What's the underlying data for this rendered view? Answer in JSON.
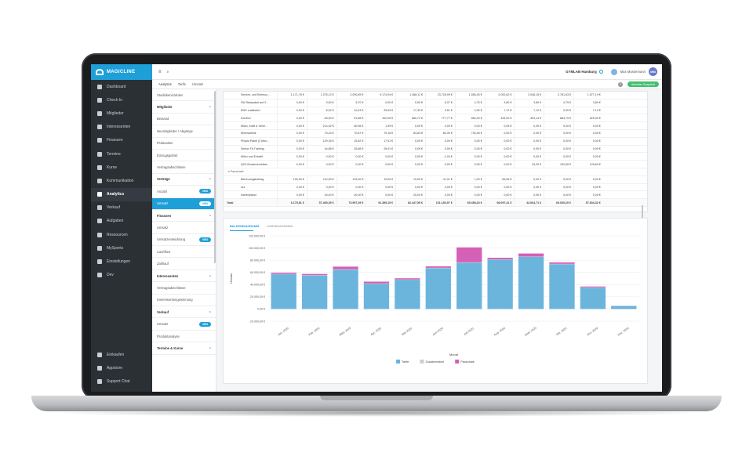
{
  "app": {
    "name": "MAGICLINE"
  },
  "sidebar": {
    "items": [
      {
        "label": "Dashboard",
        "icon": "dashboard-icon"
      },
      {
        "label": "Check-In",
        "icon": "checkin-icon"
      },
      {
        "label": "Mitglieder",
        "icon": "members-icon"
      },
      {
        "label": "Interessenten",
        "icon": "prospects-icon"
      },
      {
        "label": "Finanzen",
        "icon": "finance-icon"
      },
      {
        "label": "Termine",
        "icon": "calendar-icon"
      },
      {
        "label": "Kurse",
        "icon": "courses-icon"
      },
      {
        "label": "Kommunikation",
        "icon": "chat-icon"
      },
      {
        "label": "Analytics",
        "icon": "analytics-icon",
        "active": true
      },
      {
        "label": "Verkauf",
        "icon": "cart-icon"
      },
      {
        "label": "Aufgaben",
        "icon": "tasks-icon"
      },
      {
        "label": "Ressourcen",
        "icon": "resources-icon"
      },
      {
        "label": "MySports",
        "icon": "mysports-icon"
      },
      {
        "label": "Einstellungen",
        "icon": "settings-icon"
      },
      {
        "label": "Dev",
        "icon": "dev-icon"
      }
    ],
    "bottom_items": [
      {
        "label": "Einkaufen",
        "icon": "shop-icon"
      },
      {
        "label": "Appstore",
        "icon": "appstore-icon"
      },
      {
        "label": "Support Chat",
        "icon": "support-icon"
      }
    ]
  },
  "topbar": {
    "studio": "GYMLAB Hamburg",
    "user": "Max Mustermann",
    "initials": "MM"
  },
  "tabs": [
    "Analytics",
    "Tarife",
    "Umsatz"
  ],
  "status_pill": "Aktueller Snapshot",
  "subnav": [
    {
      "label": "Studiokennzahlen",
      "type": "item"
    },
    {
      "label": "Mitglieder",
      "type": "header"
    },
    {
      "label": "Bestand",
      "type": "item"
    },
    {
      "label": "Neumitglieder / Abgänge",
      "type": "item"
    },
    {
      "label": "Fluktuation",
      "type": "item"
    },
    {
      "label": "Einzugsgebiet",
      "type": "item"
    },
    {
      "label": "Vertragsabschlüsse",
      "type": "item"
    },
    {
      "label": "Verträge",
      "type": "header"
    },
    {
      "label": "Anzahl",
      "type": "item",
      "badge": "NEU"
    },
    {
      "label": "Umsatz",
      "type": "item",
      "badge": "NEU",
      "selected": true
    },
    {
      "label": "Finanzen",
      "type": "header"
    },
    {
      "label": "Umsatz",
      "type": "item"
    },
    {
      "label": "Umsatzentwicklung",
      "type": "item",
      "badge": "NEU"
    },
    {
      "label": "Cashflow",
      "type": "item"
    },
    {
      "label": "Zahllauf",
      "type": "item"
    },
    {
      "label": "Interessenten",
      "type": "header"
    },
    {
      "label": "Vertragsabschlüsse",
      "type": "item"
    },
    {
      "label": "Interessentengewinnung",
      "type": "item"
    },
    {
      "label": "Verkauf",
      "type": "header"
    },
    {
      "label": "Umsatz",
      "type": "item",
      "badge": "NEU"
    },
    {
      "label": "Produktanalyse",
      "type": "item"
    },
    {
      "label": "Termine & Kurse",
      "type": "header"
    }
  ],
  "table": {
    "rows": [
      {
        "name": "Service- und Betreuu...",
        "values": [
          "1.171,78 €",
          "1.375,12 €",
          "2.090,89 €",
          "9.174,94 €",
          "1.468,11 €",
          "23.728,99 €",
          "1.556,45 €",
          "2.092,62 €",
          "3.048,15 €",
          "2.781,63 €",
          "1.577,19 €"
        ]
      },
      {
        "name": "SW Startpaket auf 2...",
        "values": [
          "0,00 €",
          "9,50 €",
          "5,70 €",
          "0,00 €",
          "0,50 €",
          "6,37 €",
          "4,75 €",
          "3,80 €",
          "3,80 €",
          "4,75 €",
          "3,80 €"
        ]
      },
      {
        "name": "EMS zusätzlich",
        "values": [
          "0,00 €",
          "8,52 €",
          "10,43 €",
          "25,53 €",
          "17,49 €",
          "0,51 €",
          "0,90 €",
          "7,12 €",
          "7,12 €",
          "0,90 €",
          "7,12 €"
        ]
      },
      {
        "name": "Komfort",
        "values": [
          "0,00 €",
          "-45,00 €",
          "51,86 €",
          "342,05 €",
          "680,72 €",
          "777,77 €",
          "564,93 €",
          "425,00 €",
          "-494,14 €",
          "884,79 €",
          "525,00 €"
        ]
      },
      {
        "name": "Milon, Kraft & Sene...",
        "values": [
          "0,00 €",
          "214,92 €",
          "80,96 €",
          "1,99 €",
          "0,09 €",
          "0,00 €",
          "0,00 €",
          "0,09 €",
          "0,00 €",
          "0,00 €",
          "0,00 €"
        ]
      },
      {
        "name": "Mineraldrink",
        "values": [
          "0,00 €",
          "75,43 €",
          "70,87 €",
          "79,18 €",
          "84,83 €",
          "80,30 €",
          "730,46 €",
          "0,00 €",
          "0,00 €",
          "0,00 €",
          "0,00 €"
        ]
      },
      {
        "name": "Physio Paket (3 Mon...",
        "values": [
          "0,00 €",
          "129,35 €",
          "25,82 €",
          "17,91 €",
          "0,00 €",
          "0,00 €",
          "0,00 €",
          "0,00 €",
          "0,00 €",
          "0,00 €",
          "0,00 €"
        ]
      },
      {
        "name": "Senior-Fit-Training",
        "values": [
          "0,00 €",
          "44,85 €",
          "35,86 €",
          "26,91 €",
          "0,09 €",
          "0,00 €",
          "0,00 €",
          "0,00 €",
          "0,00 €",
          "0,00 €",
          "0,00 €"
        ]
      },
      {
        "name": "Milon und Extrafit",
        "values": [
          "0,00 €",
          "0,00 €",
          "0,00 €",
          "0,00 €",
          "0,09 €",
          "-1,03 €",
          "0,00 €",
          "0,00 €",
          "0,00 €",
          "0,00 €",
          "0,00 €"
        ]
      },
      {
        "name": "Q20-Zusatzvereinbar...",
        "values": [
          "0,00 €",
          "0,00 €",
          "0,00 €",
          "0,00 €",
          "0,00 €",
          "0,00 €",
          "0,00 €",
          "0,00 €",
          "43,20 €",
          "152,80 €",
          "125,60 €"
        ]
      }
    ],
    "group": "Pauschale",
    "group_rows": [
      {
        "name": "Betreuungsbeitrag",
        "values": [
          "100,00 €",
          "114,00 €",
          "133,00 €",
          "19,00 €",
          "19,00 €",
          "-11,01 €",
          "1,00 €",
          "65,96 €",
          "0,00 €",
          "0,00 €",
          "0,00 €"
        ]
      },
      {
        "name": "zzz",
        "values": [
          "2,00 €",
          "0,00 €",
          "0,00 €",
          "0,00 €",
          "0,00 €",
          "0,00 €",
          "0,00 €",
          "0,00 €",
          "0,00 €",
          "0,00 €",
          "0,00 €"
        ]
      },
      {
        "name": "Kartenpfand",
        "values": [
          "0,00 €",
          "40,00 €",
          "40,00 €",
          "0,00 €",
          "20,00 €",
          "0,00 €",
          "0,00 €",
          "0,00 €",
          "0,00 €",
          "0,00 €",
          "0,00 €"
        ]
      }
    ],
    "total": {
      "name": "Total",
      "values": [
        "6.175,81 €",
        "57.469,35 €",
        "73.997,39 €",
        "91.395,15 €",
        "82.447,55 €",
        "101.183,97 €",
        "69.458,20 €",
        "58.097,41 €",
        "44.064,71 €",
        "69.030,20 €",
        "57.834,32 €"
      ]
    }
  },
  "chart_tabs": [
    "BALKENDIAGRAMM",
    "LINIENDIAGRAMM"
  ],
  "chart_data": {
    "type": "bar",
    "stacked": true,
    "categories": [
      "Jan. 2020",
      "Feb. 2020",
      "März 2020",
      "Apr. 2020",
      "Mai 2020",
      "Juni 2020",
      "Juli 2020",
      "Aug. 2020",
      "Sept. 2020",
      "Okt. 2020",
      "Nov. 2020",
      "Dez. 2020"
    ],
    "series": [
      {
        "name": "Tarife",
        "color": "#6bb5dc",
        "values": [
          57000,
          55000,
          64500,
          41500,
          48000,
          67000,
          76000,
          81000,
          85500,
          73500,
          35000,
          5000
        ]
      },
      {
        "name": "Zusatzmodule",
        "color": "#c9cfd5",
        "values": [
          500,
          500,
          500,
          400,
          400,
          500,
          500,
          500,
          500,
          500,
          400,
          300
        ]
      },
      {
        "name": "Pauschale",
        "color": "#d561b6",
        "values": [
          2000,
          2000,
          4500,
          3000,
          2000,
          2500,
          24500,
          2500,
          5000,
          2500,
          1500,
          0
        ]
      }
    ],
    "ylim": [
      -20000,
      120000
    ],
    "yticks": [
      "120.000,00 €",
      "100.000,00 €",
      "80.000,00 €",
      "60.000,00 €",
      "40.000,00 €",
      "20.000,00 €",
      "0,00 €",
      "-20.000,00 €"
    ],
    "xlabel": "Monat",
    "ylabel": "Umsatz",
    "grid": true,
    "legend": "bottom"
  }
}
